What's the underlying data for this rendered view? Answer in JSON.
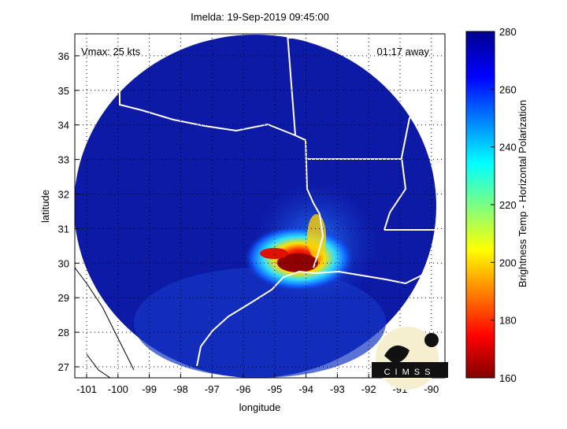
{
  "chart_data": {
    "type": "heatmap",
    "title": "Imelda: 19-Sep-2019 09:45:00",
    "xlabel": "longitude",
    "ylabel": "latitude",
    "xlim": [
      -101.4,
      -89.6
    ],
    "ylim": [
      26.7,
      36.65
    ],
    "xticks": [
      -101,
      -100,
      -99,
      -98,
      -97,
      -96,
      -95,
      -94,
      -93,
      -92,
      -91,
      -90
    ],
    "yticks": [
      27,
      28,
      29,
      30,
      31,
      32,
      33,
      34,
      35,
      36
    ],
    "grid": "dotted",
    "colorbar": {
      "label": "Brightness Temp - Horizontal Polarization",
      "range": [
        160,
        280
      ],
      "ticks": [
        160,
        180,
        200,
        220,
        240,
        260,
        280
      ],
      "colormap": [
        "#800000",
        "#ff0000",
        "#ffff00",
        "#00ffff",
        "#0000ff",
        "#00008f"
      ]
    },
    "storm_center": {
      "lon": -94.4,
      "lat": 30.0,
      "min_temp": 160
    },
    "swath_center": {
      "lon": -95.1,
      "lat": 29.9
    },
    "annotations": {
      "vmax": "Vmax: 25 kts",
      "time_away": "01:17 away"
    },
    "logo": "CIMSS"
  }
}
